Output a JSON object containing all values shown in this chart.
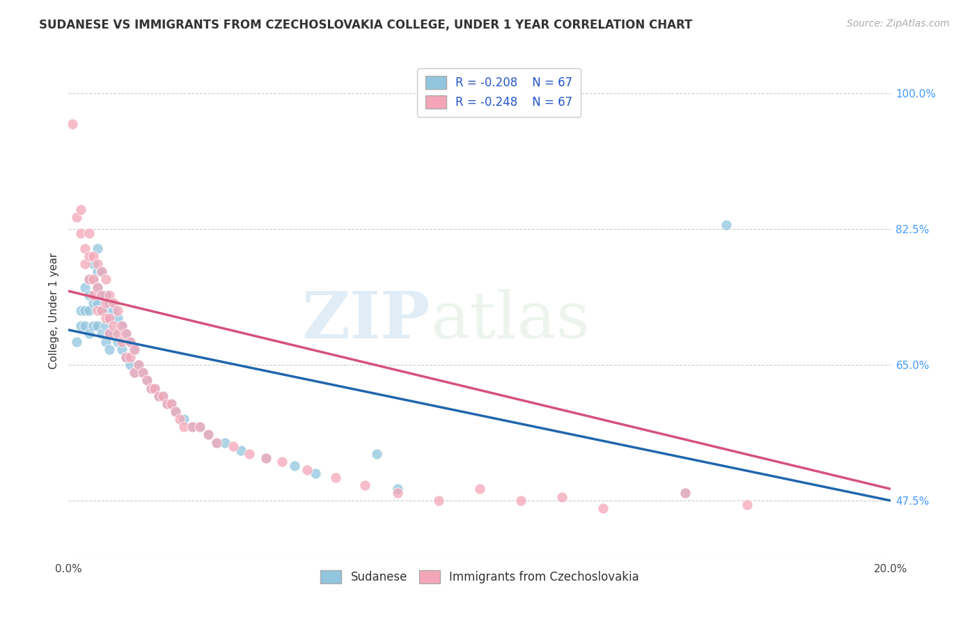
{
  "title": "SUDANESE VS IMMIGRANTS FROM CZECHOSLOVAKIA COLLEGE, UNDER 1 YEAR CORRELATION CHART",
  "source": "Source: ZipAtlas.com",
  "ylabel": "College, Under 1 year",
  "x_min": 0.0,
  "x_max": 0.2,
  "y_min": 0.4,
  "y_max": 1.04,
  "x_tick_labels": [
    "0.0%",
    "",
    "",
    "",
    "",
    "",
    "",
    "",
    "20.0%"
  ],
  "x_tick_vals": [
    0.0,
    0.025,
    0.05,
    0.075,
    0.1,
    0.125,
    0.15,
    0.175,
    0.2
  ],
  "y_tick_labels": [
    "47.5%",
    "65.0%",
    "82.5%",
    "100.0%"
  ],
  "y_tick_vals": [
    0.475,
    0.65,
    0.825,
    1.0
  ],
  "legend_label1": "Sudanese",
  "legend_label2": "Immigrants from Czechoslovakia",
  "legend_r1": "R = -0.208",
  "legend_n1": "N = 67",
  "legend_r2": "R = -0.248",
  "legend_n2": "N = 67",
  "color_blue": "#92c5de",
  "color_pink": "#f4a6b8",
  "color_blue_line": "#2166ac",
  "color_pink_line": "#d6527a",
  "watermark_zip": "ZIP",
  "watermark_atlas": "atlas",
  "grid_color": "#cccccc",
  "background_color": "#ffffff",
  "title_fontsize": 12,
  "axis_label_fontsize": 11,
  "tick_fontsize": 11,
  "source_fontsize": 10,
  "blue_scatter_x": [
    0.002,
    0.003,
    0.003,
    0.004,
    0.004,
    0.004,
    0.005,
    0.005,
    0.005,
    0.005,
    0.006,
    0.006,
    0.006,
    0.006,
    0.007,
    0.007,
    0.007,
    0.007,
    0.007,
    0.008,
    0.008,
    0.008,
    0.008,
    0.009,
    0.009,
    0.009,
    0.009,
    0.01,
    0.01,
    0.01,
    0.01,
    0.011,
    0.011,
    0.012,
    0.012,
    0.013,
    0.013,
    0.014,
    0.014,
    0.015,
    0.015,
    0.016,
    0.016,
    0.017,
    0.018,
    0.019,
    0.02,
    0.021,
    0.022,
    0.023,
    0.024,
    0.025,
    0.026,
    0.028,
    0.03,
    0.032,
    0.034,
    0.036,
    0.038,
    0.042,
    0.048,
    0.055,
    0.06,
    0.075,
    0.08,
    0.15,
    0.16
  ],
  "blue_scatter_y": [
    0.68,
    0.72,
    0.7,
    0.75,
    0.72,
    0.7,
    0.76,
    0.74,
    0.72,
    0.69,
    0.78,
    0.76,
    0.73,
    0.7,
    0.8,
    0.77,
    0.75,
    0.73,
    0.7,
    0.77,
    0.74,
    0.72,
    0.69,
    0.74,
    0.72,
    0.7,
    0.68,
    0.73,
    0.71,
    0.69,
    0.67,
    0.72,
    0.69,
    0.71,
    0.68,
    0.7,
    0.67,
    0.69,
    0.66,
    0.68,
    0.65,
    0.67,
    0.64,
    0.65,
    0.64,
    0.63,
    0.62,
    0.62,
    0.61,
    0.61,
    0.6,
    0.6,
    0.59,
    0.58,
    0.57,
    0.57,
    0.56,
    0.55,
    0.55,
    0.54,
    0.53,
    0.52,
    0.51,
    0.535,
    0.49,
    0.485,
    0.83
  ],
  "pink_scatter_x": [
    0.001,
    0.002,
    0.003,
    0.003,
    0.004,
    0.004,
    0.005,
    0.005,
    0.005,
    0.006,
    0.006,
    0.006,
    0.007,
    0.007,
    0.007,
    0.008,
    0.008,
    0.008,
    0.009,
    0.009,
    0.009,
    0.01,
    0.01,
    0.01,
    0.011,
    0.011,
    0.012,
    0.012,
    0.013,
    0.013,
    0.014,
    0.014,
    0.015,
    0.015,
    0.016,
    0.016,
    0.017,
    0.018,
    0.019,
    0.02,
    0.021,
    0.022,
    0.023,
    0.024,
    0.025,
    0.026,
    0.027,
    0.028,
    0.03,
    0.032,
    0.034,
    0.036,
    0.04,
    0.044,
    0.048,
    0.052,
    0.058,
    0.065,
    0.072,
    0.08,
    0.09,
    0.1,
    0.11,
    0.12,
    0.13,
    0.15,
    0.165
  ],
  "pink_scatter_y": [
    0.96,
    0.84,
    0.85,
    0.82,
    0.8,
    0.78,
    0.82,
    0.79,
    0.76,
    0.79,
    0.76,
    0.74,
    0.78,
    0.75,
    0.72,
    0.77,
    0.74,
    0.72,
    0.76,
    0.73,
    0.71,
    0.74,
    0.71,
    0.69,
    0.73,
    0.7,
    0.72,
    0.69,
    0.7,
    0.68,
    0.69,
    0.66,
    0.68,
    0.66,
    0.67,
    0.64,
    0.65,
    0.64,
    0.63,
    0.62,
    0.62,
    0.61,
    0.61,
    0.6,
    0.6,
    0.59,
    0.58,
    0.57,
    0.57,
    0.57,
    0.56,
    0.55,
    0.545,
    0.535,
    0.53,
    0.525,
    0.515,
    0.505,
    0.495,
    0.485,
    0.475,
    0.49,
    0.475,
    0.48,
    0.465,
    0.485,
    0.47
  ],
  "blue_line_x": [
    0.0,
    0.2
  ],
  "blue_line_y": [
    0.695,
    0.475
  ],
  "pink_line_x": [
    0.0,
    0.2
  ],
  "pink_line_y": [
    0.745,
    0.49
  ]
}
